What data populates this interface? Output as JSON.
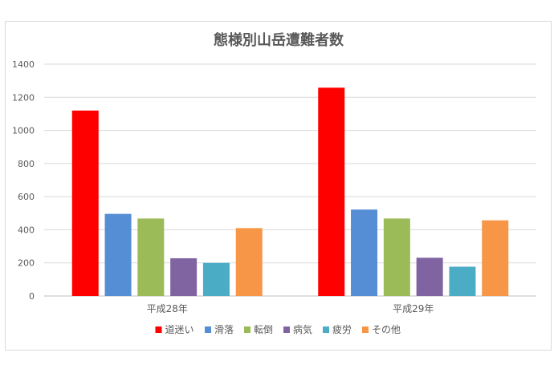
{
  "chart_data": {
    "type": "bar",
    "title": "態様別山岳遭難者数",
    "xlabel": "",
    "ylabel": "",
    "categories": [
      "平成28年",
      "平成29年"
    ],
    "ylim": [
      0,
      1400
    ],
    "yticks": [
      0,
      200,
      400,
      600,
      800,
      1000,
      1200,
      1400
    ],
    "grid": true,
    "legend_position": "bottom",
    "series": [
      {
        "name": "道迷い",
        "color": "#ff0000",
        "values": [
          1120,
          1258
        ]
      },
      {
        "name": "滑落",
        "color": "#558ed5",
        "values": [
          496,
          522
        ]
      },
      {
        "name": "転倒",
        "color": "#9bbb59",
        "values": [
          468,
          468
        ]
      },
      {
        "name": "病気",
        "color": "#8064a2",
        "values": [
          228,
          231
        ]
      },
      {
        "name": "疲労",
        "color": "#4bacc6",
        "values": [
          200,
          177
        ]
      },
      {
        "name": "その他",
        "color": "#f79646",
        "values": [
          410,
          457
        ]
      }
    ]
  }
}
